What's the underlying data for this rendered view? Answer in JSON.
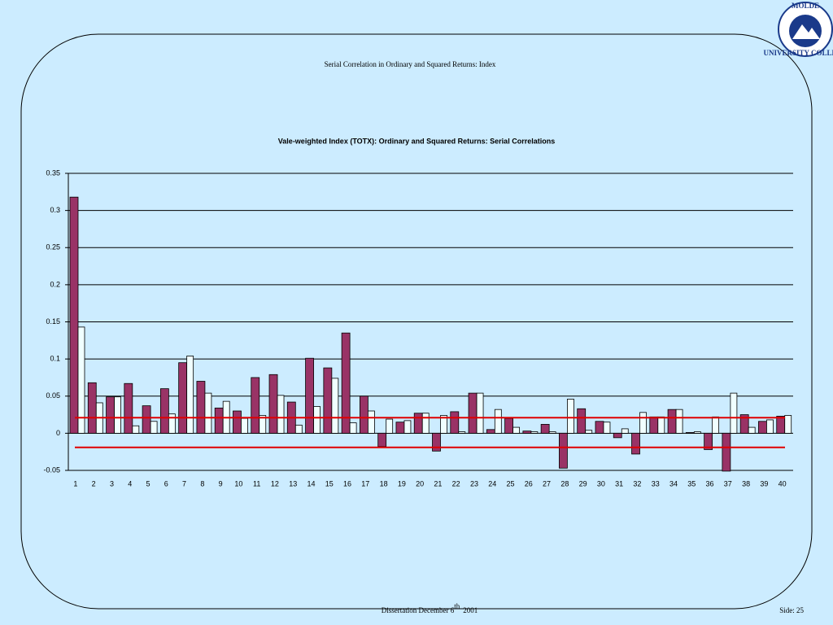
{
  "slide": {
    "title": "Serial Correlation in Ordinary and Squared Returns: Index",
    "footer": [
      "Dissertation December 6",
      "th",
      "2001"
    ],
    "page": "Side: 25",
    "logo": [
      "MOLDE",
      "UNIVERSITY COLLEGE"
    ]
  },
  "chart_data": {
    "type": "bar",
    "title": "Vale-weighted Index (TOTX): Ordinary and Squared Returns: Serial Correlations",
    "categories": [
      "1",
      "2",
      "3",
      "4",
      "5",
      "6",
      "7",
      "8",
      "9",
      "10",
      "11",
      "12",
      "13",
      "14",
      "15",
      "16",
      "17",
      "18",
      "19",
      "20",
      "21",
      "22",
      "23",
      "24",
      "25",
      "26",
      "27",
      "28",
      "29",
      "30",
      "31",
      "32",
      "33",
      "34",
      "35",
      "36",
      "37",
      "38",
      "39",
      "40"
    ],
    "series": [
      {
        "color": "#993366",
        "values": [
          0.318,
          0.068,
          0.049,
          0.067,
          0.037,
          0.06,
          0.095,
          0.07,
          0.034,
          0.03,
          0.075,
          0.079,
          0.042,
          0.101,
          0.088,
          0.135,
          0.05,
          -0.018,
          0.015,
          0.027,
          -0.024,
          0.029,
          0.054,
          0.005,
          0.02,
          0.003,
          0.012,
          -0.047,
          0.033,
          0.016,
          -0.006,
          -0.028,
          0.022,
          0.032,
          0.001,
          -0.022,
          -0.051,
          0.025,
          0.016,
          0.023
        ]
      },
      {
        "color": "#f0ffff",
        "values": [
          0.143,
          0.041,
          0.049,
          0.01,
          0.016,
          0.026,
          0.104,
          0.054,
          0.043,
          0.02,
          0.024,
          0.051,
          0.011,
          0.036,
          0.074,
          0.014,
          0.03,
          0.019,
          0.017,
          0.027,
          0.024,
          0.002,
          0.054,
          0.032,
          0.008,
          0.002,
          0.002,
          0.046,
          0.004,
          0.015,
          0.006,
          0.028,
          0.022,
          0.032,
          0.002,
          0.022,
          0.054,
          0.008,
          0.018,
          0.024
        ]
      }
    ],
    "confidence_bands": [
      0.021,
      -0.019
    ],
    "band_color": "#e00000",
    "ylim": [
      -0.05,
      0.35
    ],
    "yticks": [
      -0.05,
      0,
      0.05,
      0.1,
      0.15,
      0.2,
      0.25,
      0.3,
      0.35
    ],
    "grid": true
  }
}
